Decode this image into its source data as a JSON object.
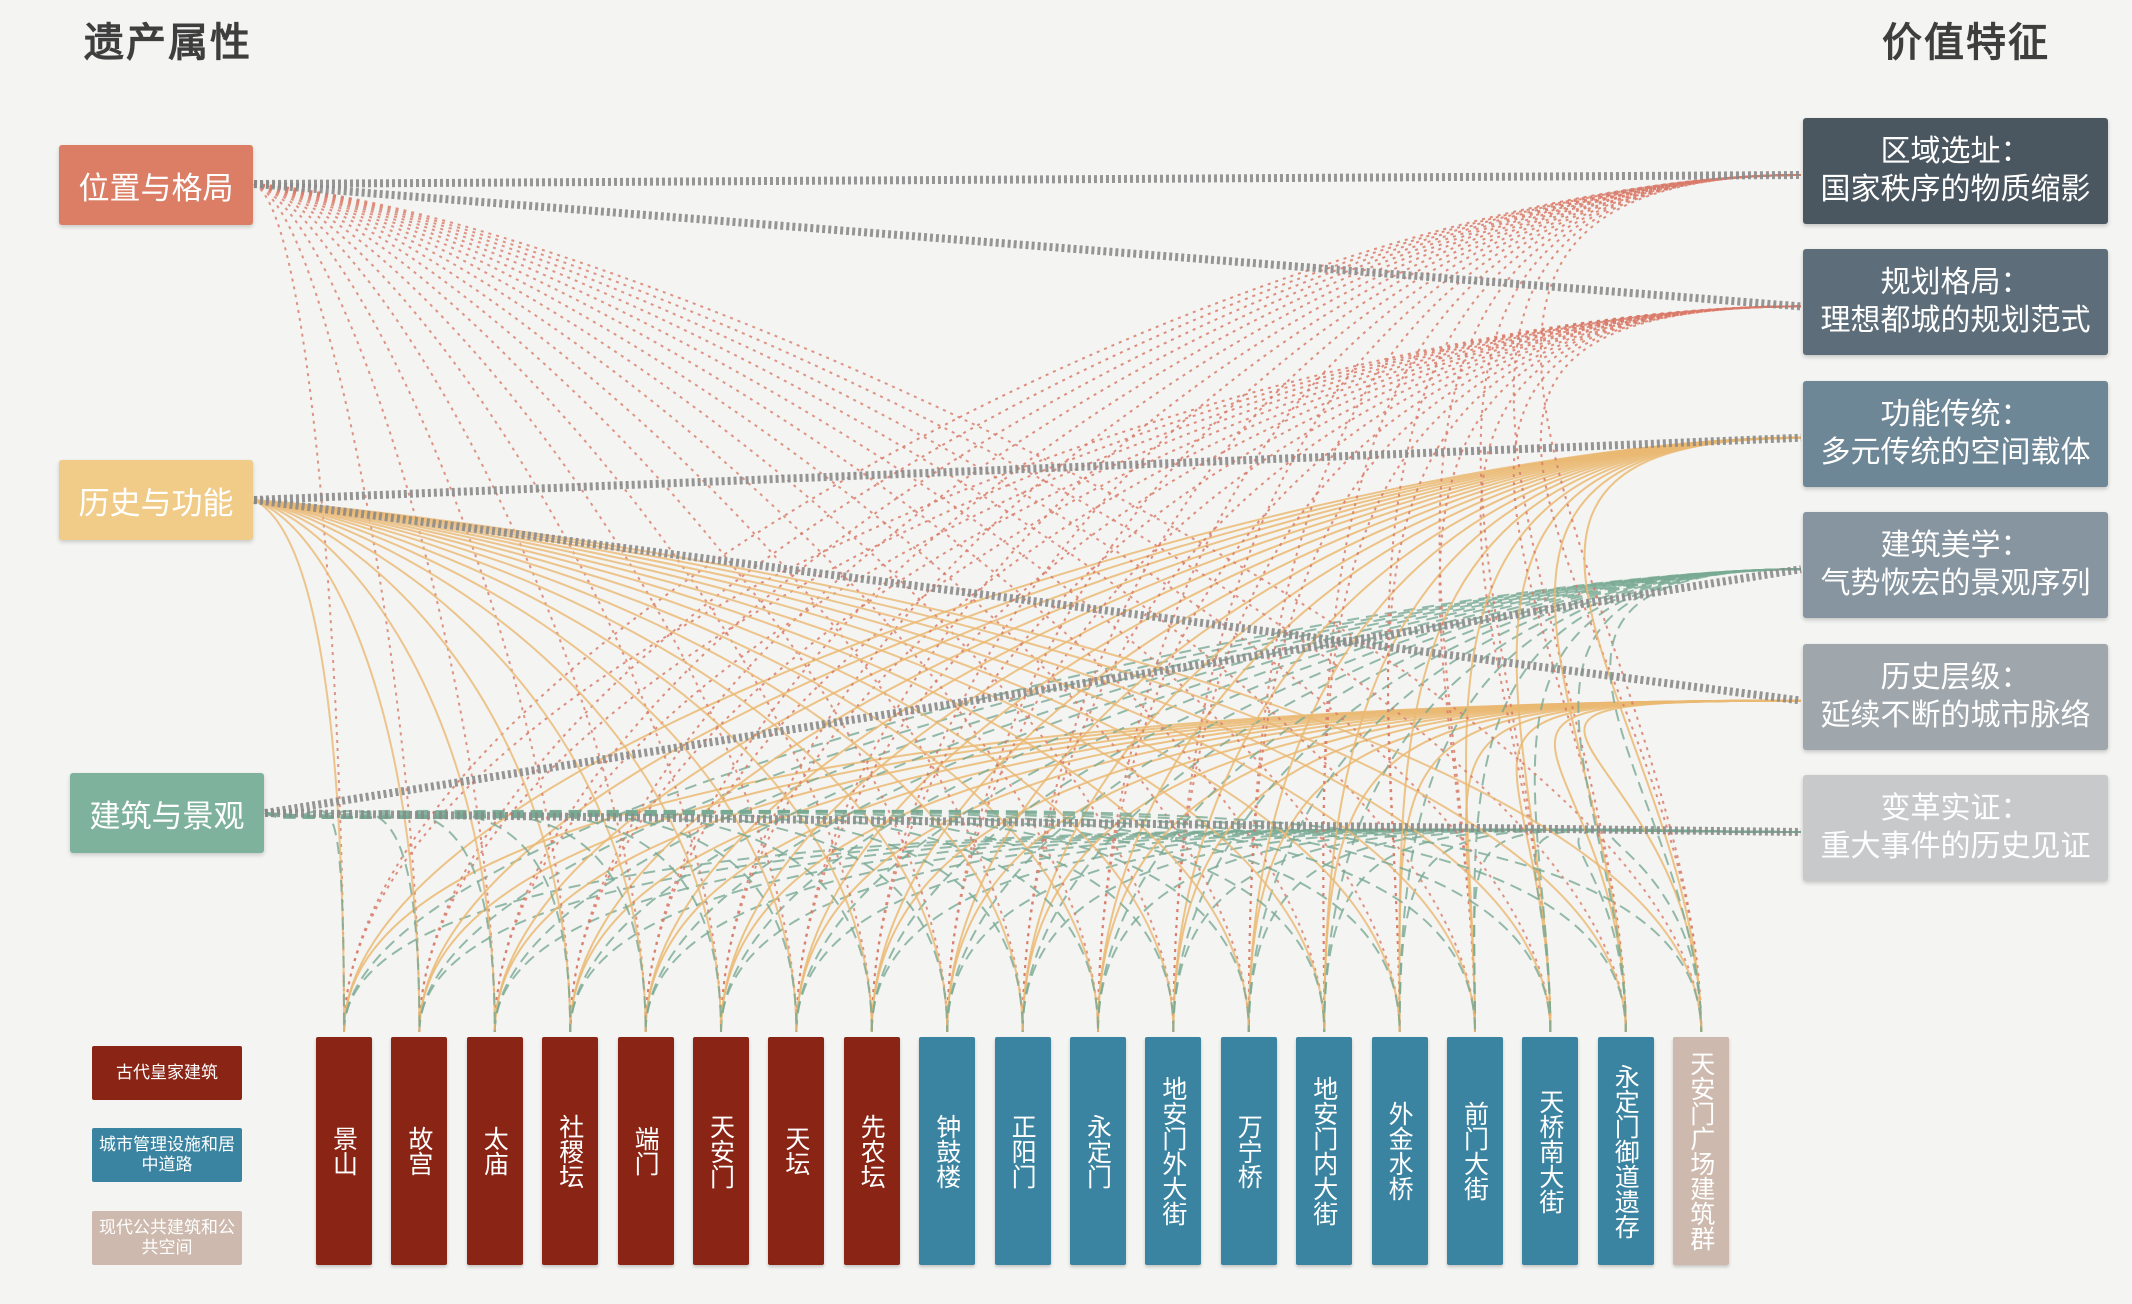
{
  "titles": {
    "left": "遗产属性",
    "right": "价值特征"
  },
  "colors": {
    "imperial": "#8a2516",
    "urban": "#3a84a1",
    "modern": "#cdb9ad",
    "attr_location": "#db7e65",
    "attr_history": "#f0cc88",
    "attr_architecture": "#7fb29c",
    "edge_location": "#d97a68",
    "edge_history": "#eab872",
    "edge_architecture": "#79aa94",
    "link_grey": "#8b8b8b"
  },
  "attributes": [
    {
      "id": "location",
      "label": "位置与格局"
    },
    {
      "id": "history",
      "label": "历史与功能"
    },
    {
      "id": "architecture",
      "label": "建筑与景观"
    }
  ],
  "values": [
    {
      "line1": "区域选址：",
      "line2": "国家秩序的物质缩影",
      "color": "#4b5760"
    },
    {
      "line1": "规划格局：",
      "line2": "理想都城的规划范式",
      "color": "#5d6e7a"
    },
    {
      "line1": "功能传统：",
      "line2": "多元传统的空间载体",
      "color": "#6e8796"
    },
    {
      "line1": "建筑美学：",
      "line2": "气势恢宏的景观序列",
      "color": "#86959f"
    },
    {
      "line1": "历史层级：",
      "line2": "延续不断的城市脉络",
      "color": "#a0a7ac"
    },
    {
      "line1": "变革实证：",
      "line2": "重大事件的历史见证",
      "color": "#c7c9cb"
    }
  ],
  "attribute_value_links": [
    {
      "attr": "location",
      "values": [
        0,
        1
      ]
    },
    {
      "attr": "history",
      "values": [
        2,
        4
      ]
    },
    {
      "attr": "architecture",
      "values": [
        3,
        5
      ]
    }
  ],
  "legend": [
    {
      "category": "imperial",
      "label": "古代皇家建筑"
    },
    {
      "category": "urban",
      "label": "城市管理设施和居中道路"
    },
    {
      "category": "modern",
      "label": "现代公共建筑和公共空间"
    }
  ],
  "sites": [
    {
      "label": "景山",
      "category": "imperial"
    },
    {
      "label": "故宫",
      "category": "imperial"
    },
    {
      "label": "太庙",
      "category": "imperial"
    },
    {
      "label": "社稷坛",
      "category": "imperial"
    },
    {
      "label": "端门",
      "category": "imperial"
    },
    {
      "label": "天安门",
      "category": "imperial"
    },
    {
      "label": "天坛",
      "category": "imperial"
    },
    {
      "label": "先农坛",
      "category": "imperial"
    },
    {
      "label": "钟鼓楼",
      "category": "urban"
    },
    {
      "label": "正阳门",
      "category": "urban"
    },
    {
      "label": "永定门",
      "category": "urban"
    },
    {
      "label": "地安门外大街",
      "category": "urban"
    },
    {
      "label": "万宁桥",
      "category": "urban"
    },
    {
      "label": "地安门内大街",
      "category": "urban"
    },
    {
      "label": "外金水桥",
      "category": "urban"
    },
    {
      "label": "前门大街",
      "category": "urban"
    },
    {
      "label": "天桥南大街",
      "category": "urban"
    },
    {
      "label": "永定门御道遗存",
      "category": "urban"
    },
    {
      "label": "天安门广场建筑群",
      "category": "modern"
    }
  ]
}
